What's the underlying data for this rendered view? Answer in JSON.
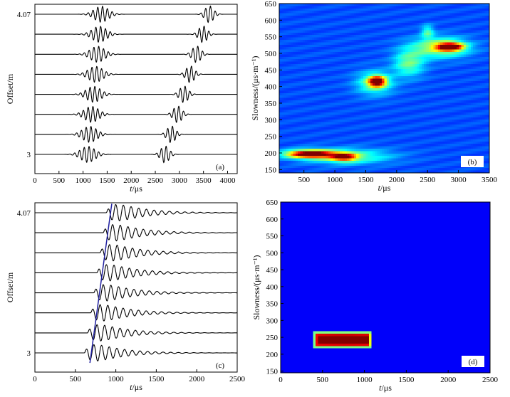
{
  "chart_data": [
    {
      "id": "a",
      "type": "line",
      "panel_label": "(a)",
      "xlabel_italic": "t",
      "xlabel_unit": "/μs",
      "ylabel": "Offset/m",
      "xlim": [
        0,
        4200
      ],
      "xticks": [
        "0",
        "500",
        "1000",
        "1500",
        "2000",
        "2500",
        "3000",
        "3500",
        "4000"
      ],
      "xtick_values": [
        0,
        500,
        1000,
        1500,
        2000,
        2500,
        3000,
        3500,
        4000
      ],
      "ytick_top": "4.07",
      "ytick_bottom": "3",
      "trace_count": 8,
      "wave_period_us": 100,
      "packets": [
        {
          "name": "first arrival",
          "center_top_us": 1380,
          "center_bottom_us": 1100,
          "width_us": 210,
          "amplitude": 0.95
        },
        {
          "name": "second arrival",
          "center_top_us": 3620,
          "center_bottom_us": 2700,
          "width_us": 125,
          "amplitude": 1.0
        }
      ]
    },
    {
      "id": "b",
      "type": "heatmap",
      "panel_label": "(b)",
      "xlabel_italic": "t",
      "xlabel_unit": "/μs",
      "ylabel": "Slowness/(μs·m⁻¹)",
      "xlim": [
        100,
        3500
      ],
      "ylim": [
        140,
        650
      ],
      "xticks": [
        "500",
        "1000",
        "1500",
        "2000",
        "2500",
        "3000",
        "3500"
      ],
      "xtick_values": [
        500,
        1000,
        1500,
        2000,
        2500,
        3000,
        3500
      ],
      "yticks": [
        "150",
        "200",
        "250",
        "300",
        "350",
        "400",
        "450",
        "500",
        "550",
        "600",
        "650"
      ],
      "ytick_values": [
        150,
        200,
        250,
        300,
        350,
        400,
        450,
        500,
        550,
        600,
        650
      ],
      "background_level": 0.2,
      "blobs": [
        {
          "t": 600,
          "s": 197,
          "sigma_t": 380,
          "sigma_s": 12,
          "level": 0.95
        },
        {
          "t": 1150,
          "s": 188,
          "sigma_t": 200,
          "sigma_s": 12,
          "level": 0.6
        },
        {
          "t": 1200,
          "s": 190,
          "sigma_t": 700,
          "sigma_s": 22,
          "level": 0.3
        },
        {
          "t": 1680,
          "s": 415,
          "sigma_t": 130,
          "sigma_s": 15,
          "level": 0.85
        },
        {
          "t": 1650,
          "s": 410,
          "sigma_t": 300,
          "sigma_s": 35,
          "level": 0.3
        },
        {
          "t": 2200,
          "s": 470,
          "sigma_t": 250,
          "sigma_s": 40,
          "level": 0.3
        },
        {
          "t": 2870,
          "s": 520,
          "sigma_t": 200,
          "sigma_s": 12,
          "level": 0.85
        },
        {
          "t": 2700,
          "s": 518,
          "sigma_t": 450,
          "sigma_s": 30,
          "level": 0.4
        },
        {
          "t": 2500,
          "s": 565,
          "sigma_t": 100,
          "sigma_s": 20,
          "level": 0.25
        }
      ]
    },
    {
      "id": "c",
      "type": "line",
      "panel_label": "(c)",
      "xlabel_italic": "t",
      "xlabel_unit": "/μs",
      "ylabel": "Offset/m",
      "xlim": [
        0,
        2500
      ],
      "xticks": [
        "0",
        "500",
        "1000",
        "1500",
        "2000",
        "2500"
      ],
      "xtick_values": [
        0,
        500,
        1000,
        1500,
        2000,
        2500
      ],
      "ytick_top": "4.07",
      "ytick_bottom": "3",
      "trace_count": 8,
      "wave_period_us": 95,
      "packets": [
        {
          "name": "arrival",
          "onset_top_us": 880,
          "onset_bottom_us": 610,
          "rise_us": 90,
          "decay_us": 330,
          "amplitude": 1.0
        }
      ],
      "line": {
        "t_bottom_us": 680,
        "t_top_us": 950,
        "color": "#2020a0"
      }
    },
    {
      "id": "d",
      "type": "heatmap",
      "panel_label": "(d)",
      "xlabel_italic": "t",
      "xlabel_unit": "/μs",
      "ylabel": "Slowness/(μs·m⁻¹)",
      "xlim": [
        0,
        2500
      ],
      "ylim": [
        145,
        650
      ],
      "xticks": [
        "0",
        "500",
        "1000",
        "1500",
        "2000",
        "2500"
      ],
      "xtick_values": [
        0,
        500,
        1000,
        1500,
        2000,
        2500
      ],
      "yticks": [
        "150",
        "200",
        "250",
        "300",
        "350",
        "400",
        "450",
        "500",
        "550",
        "600",
        "650"
      ],
      "ytick_values": [
        150,
        200,
        250,
        300,
        350,
        400,
        450,
        500,
        550,
        600,
        650
      ],
      "background_level": 0.12,
      "patch": {
        "t_min": 400,
        "t_max": 1080,
        "s_min": 220,
        "s_max": 265,
        "core_t": 760,
        "core_s": 243
      }
    }
  ]
}
